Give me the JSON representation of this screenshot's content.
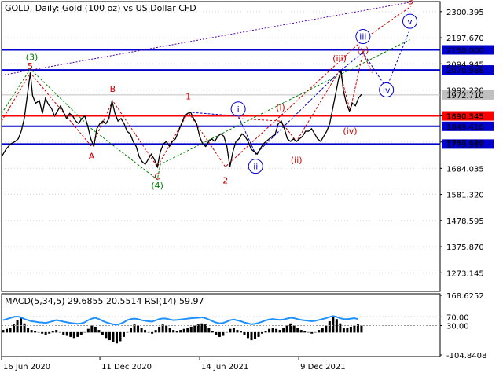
{
  "chart_data": {
    "type": "line",
    "title": "GOLD, Daily:  Gold (100 oz) vs US Dollar CFD",
    "price_ticks": [
      "2300.395",
      "2197.670",
      "2094.945",
      "1992.220",
      "1890.345",
      "1787.620",
      "1684.035",
      "1581.320",
      "1478.595",
      "1375.870",
      "1273.145"
    ],
    "date_ticks": [
      "16 Jun 2020",
      "11 Dec 2020",
      "14 Jun 2021",
      "9 Dec 2021"
    ],
    "ylim": [
      1200,
      2340
    ],
    "xlim": [
      0,
      580
    ],
    "levels": [
      {
        "value": 2150.0,
        "label": "2150.000",
        "color": "#0000cc",
        "kind": "blue"
      },
      {
        "value": 2070.988,
        "label": "2070.988",
        "color": "#0000cc",
        "kind": "blue"
      },
      {
        "value": 1890.345,
        "label": "1890.345",
        "color": "#ff0000",
        "kind": "red"
      },
      {
        "value": 1849.416,
        "label": "1849.416",
        "color": "#0000cc",
        "kind": "blue"
      },
      {
        "value": 1779.587,
        "label": "1779.587",
        "color": "#0000cc",
        "kind": "blue"
      }
    ],
    "current_price": {
      "value": 1972.71,
      "label": "1972.710"
    },
    "price": [
      [
        0,
        1730
      ],
      [
        6,
        1760
      ],
      [
        12,
        1780
      ],
      [
        18,
        1790
      ],
      [
        22,
        1800
      ],
      [
        26,
        1830
      ],
      [
        30,
        1880
      ],
      [
        34,
        1970
      ],
      [
        38,
        2060
      ],
      [
        41,
        1970
      ],
      [
        45,
        1940
      ],
      [
        50,
        1950
      ],
      [
        54,
        1900
      ],
      [
        58,
        1960
      ],
      [
        62,
        1935
      ],
      [
        66,
        1920
      ],
      [
        70,
        1890
      ],
      [
        74,
        1910
      ],
      [
        78,
        1930
      ],
      [
        82,
        1905
      ],
      [
        86,
        1880
      ],
      [
        90,
        1900
      ],
      [
        94,
        1890
      ],
      [
        98,
        1870
      ],
      [
        102,
        1860
      ],
      [
        106,
        1880
      ],
      [
        110,
        1890
      ],
      [
        114,
        1850
      ],
      [
        118,
        1800
      ],
      [
        122,
        1770
      ],
      [
        126,
        1840
      ],
      [
        130,
        1860
      ],
      [
        134,
        1870
      ],
      [
        138,
        1860
      ],
      [
        142,
        1880
      ],
      [
        146,
        1950
      ],
      [
        150,
        1900
      ],
      [
        154,
        1870
      ],
      [
        158,
        1880
      ],
      [
        162,
        1860
      ],
      [
        166,
        1830
      ],
      [
        170,
        1820
      ],
      [
        174,
        1790
      ],
      [
        178,
        1770
      ],
      [
        182,
        1730
      ],
      [
        186,
        1710
      ],
      [
        190,
        1700
      ],
      [
        194,
        1720
      ],
      [
        198,
        1740
      ],
      [
        202,
        1720
      ],
      [
        206,
        1690
      ],
      [
        210,
        1750
      ],
      [
        214,
        1780
      ],
      [
        218,
        1790
      ],
      [
        222,
        1770
      ],
      [
        226,
        1790
      ],
      [
        230,
        1800
      ],
      [
        234,
        1830
      ],
      [
        238,
        1860
      ],
      [
        242,
        1890
      ],
      [
        246,
        1900
      ],
      [
        250,
        1905
      ],
      [
        254,
        1880
      ],
      [
        258,
        1860
      ],
      [
        262,
        1810
      ],
      [
        266,
        1780
      ],
      [
        270,
        1770
      ],
      [
        274,
        1790
      ],
      [
        278,
        1800
      ],
      [
        282,
        1790
      ],
      [
        286,
        1810
      ],
      [
        290,
        1820
      ],
      [
        294,
        1810
      ],
      [
        298,
        1770
      ],
      [
        302,
        1690
      ],
      [
        306,
        1750
      ],
      [
        310,
        1790
      ],
      [
        314,
        1800
      ],
      [
        318,
        1820
      ],
      [
        322,
        1810
      ],
      [
        326,
        1790
      ],
      [
        330,
        1760
      ],
      [
        334,
        1750
      ],
      [
        338,
        1740
      ],
      [
        342,
        1760
      ],
      [
        346,
        1780
      ],
      [
        350,
        1790
      ],
      [
        354,
        1800
      ],
      [
        358,
        1810
      ],
      [
        362,
        1820
      ],
      [
        366,
        1860
      ],
      [
        370,
        1870
      ],
      [
        374,
        1840
      ],
      [
        378,
        1800
      ],
      [
        382,
        1790
      ],
      [
        386,
        1800
      ],
      [
        390,
        1790
      ],
      [
        394,
        1800
      ],
      [
        398,
        1810
      ],
      [
        402,
        1830
      ],
      [
        406,
        1830
      ],
      [
        410,
        1840
      ],
      [
        414,
        1820
      ],
      [
        418,
        1800
      ],
      [
        422,
        1790
      ],
      [
        426,
        1810
      ],
      [
        430,
        1830
      ],
      [
        434,
        1860
      ],
      [
        438,
        1920
      ],
      [
        442,
        1980
      ],
      [
        446,
        2040
      ],
      [
        449,
        2070
      ],
      [
        452,
        1990
      ],
      [
        456,
        1940
      ],
      [
        460,
        1910
      ],
      [
        464,
        1940
      ],
      [
        468,
        1930
      ],
      [
        472,
        1960
      ],
      [
        476,
        1975
      ]
    ],
    "wave_labels": [
      {
        "text": "(3)",
        "x": 40,
        "y": 2110,
        "color": "#008000",
        "circle": false
      },
      {
        "text": "5",
        "x": 38,
        "y": 2075,
        "color": "#cc0000",
        "circle": false
      },
      {
        "text": "A",
        "x": 119,
        "y": 1720,
        "color": "#cc0000",
        "circle": false
      },
      {
        "text": "B",
        "x": 147,
        "y": 1985,
        "color": "#cc0000",
        "circle": false
      },
      {
        "text": "C",
        "x": 206,
        "y": 1640,
        "color": "#cc0000",
        "circle": false
      },
      {
        "text": "(4)",
        "x": 206,
        "y": 1605,
        "color": "#008000",
        "circle": false
      },
      {
        "text": "1",
        "x": 247,
        "y": 1955,
        "color": "#cc0000",
        "circle": false
      },
      {
        "text": "2",
        "x": 296,
        "y": 1625,
        "color": "#cc0000",
        "circle": false
      },
      {
        "text": "i",
        "x": 313,
        "y": 1905,
        "color": "#0000cc",
        "circle": true
      },
      {
        "text": "ii",
        "x": 336,
        "y": 1680,
        "color": "#0000cc",
        "circle": true
      },
      {
        "text": "(i)",
        "x": 369,
        "y": 1912,
        "color": "#cc0000",
        "circle": false
      },
      {
        "text": "(ii)",
        "x": 390,
        "y": 1705,
        "color": "#cc0000",
        "circle": false
      },
      {
        "text": "(iii)",
        "x": 447,
        "y": 2105,
        "color": "#cc0000",
        "circle": false
      },
      {
        "text": "(iv)",
        "x": 461,
        "y": 1820,
        "color": "#cc0000",
        "circle": false
      },
      {
        "text": "iii",
        "x": 478,
        "y": 2190,
        "color": "#0000cc",
        "circle": true
      },
      {
        "text": "(v)",
        "x": 478,
        "y": 2138,
        "color": "#cc0000",
        "circle": false
      },
      {
        "text": "iv",
        "x": 509,
        "y": 1980,
        "color": "#0000cc",
        "circle": true
      },
      {
        "text": "v",
        "x": 540,
        "y": 2250,
        "color": "#0000cc",
        "circle": true
      },
      {
        "text": "3",
        "x": 541,
        "y": 2330,
        "color": "#cc0000",
        "circle": false
      }
    ],
    "wave_paths": [
      {
        "color": "#008000",
        "points": [
          [
            0,
            1900
          ],
          [
            38,
            2075
          ],
          [
            119,
            1840
          ],
          [
            206,
            1640
          ],
          [
            210,
            1700
          ],
          [
            540,
            2190
          ]
        ]
      },
      {
        "color": "#cc0000",
        "points": [
          [
            0,
            1870
          ],
          [
            38,
            2060
          ],
          [
            119,
            1770
          ],
          [
            147,
            1950
          ],
          [
            206,
            1690
          ],
          [
            247,
            1905
          ],
          [
            296,
            1690
          ],
          [
            478,
            2190
          ],
          [
            541,
            2320
          ]
        ]
      },
      {
        "color": "#0000cc",
        "points": [
          [
            247,
            1905
          ],
          [
            313,
            1890
          ],
          [
            336,
            1740
          ],
          [
            449,
            2070
          ],
          [
            478,
            2140
          ],
          [
            509,
            2000
          ],
          [
            540,
            2230
          ]
        ]
      },
      {
        "color": "#cc0000",
        "points": [
          [
            313,
            1880
          ],
          [
            369,
            1870
          ],
          [
            390,
            1790
          ],
          [
            447,
            2070
          ],
          [
            461,
            1910
          ],
          [
            478,
            2140
          ],
          [
            490,
            2060
          ]
        ]
      }
    ],
    "channel_line": {
      "color": "#5500aa",
      "points": [
        [
          0,
          2050
        ],
        [
          545,
          2340
        ]
      ]
    },
    "indicator": {
      "label": "MACD(5,34,5) 29.6855 20.5514 RSI(14) 59.97",
      "ticks": [
        "168.6252",
        "70.00",
        "30.00",
        "-104.8408"
      ],
      "ylim": [
        -104.8408,
        168.6252
      ],
      "hist": [
        10,
        15,
        20,
        35,
        55,
        70,
        40,
        20,
        10,
        5,
        0,
        -5,
        -10,
        -5,
        5,
        10,
        0,
        -10,
        -15,
        -20,
        -25,
        -20,
        -10,
        0,
        15,
        30,
        25,
        10,
        -10,
        -25,
        -35,
        -45,
        -50,
        -40,
        -20,
        0,
        20,
        35,
        30,
        20,
        10,
        0,
        -5,
        10,
        25,
        35,
        30,
        20,
        10,
        5,
        10,
        15,
        20,
        25,
        30,
        35,
        40,
        35,
        20,
        5,
        -10,
        -20,
        -15,
        0,
        15,
        20,
        10,
        5,
        -10,
        -25,
        -35,
        -30,
        -20,
        -5,
        5,
        15,
        20,
        15,
        10,
        20,
        30,
        40,
        30,
        20,
        10,
        5,
        0,
        -5,
        0,
        10,
        20,
        30,
        50,
        70,
        60,
        40,
        20,
        20,
        25,
        30,
        35,
        30
      ],
      "rsi": [
        55,
        60,
        65,
        70,
        72,
        68,
        60,
        55,
        50,
        48,
        45,
        44,
        42,
        46,
        50,
        55,
        52,
        48,
        45,
        42,
        40,
        38,
        40,
        45,
        55,
        62,
        66,
        60,
        52,
        45,
        40,
        36,
        34,
        38,
        45,
        55,
        60,
        62,
        60,
        55,
        52,
        50,
        48,
        54,
        60,
        63,
        62,
        58,
        55,
        56,
        58,
        60,
        62,
        64,
        65,
        66,
        68,
        64,
        58,
        50,
        44,
        40,
        42,
        48,
        55,
        58,
        54,
        50,
        44,
        40,
        36,
        38,
        42,
        48,
        54,
        58,
        60,
        58,
        56,
        58,
        62,
        66,
        64,
        60,
        56,
        54,
        52,
        50,
        52,
        56,
        60,
        64,
        70,
        74,
        70,
        64,
        60,
        60,
        62,
        64,
        60
      ]
    }
  }
}
